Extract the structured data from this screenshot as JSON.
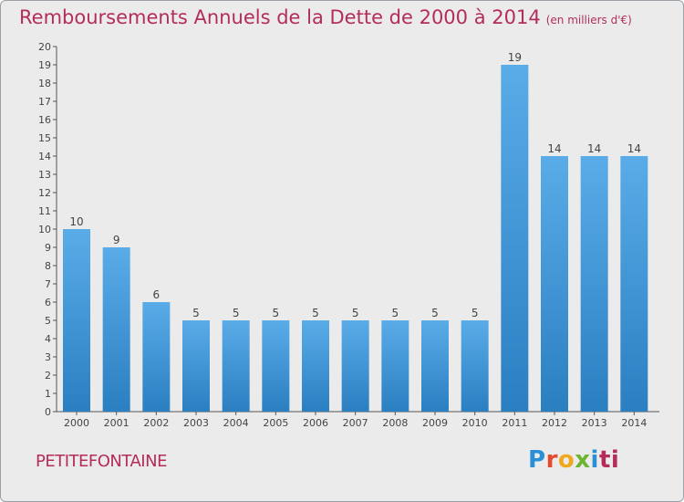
{
  "title": "Remboursements Annuels de la Dette de 2000 à 2014",
  "unit": "(en milliers d'€)",
  "commune": "PETITEFONTAINE",
  "logo": {
    "parts": [
      "P",
      "r",
      "o",
      "x",
      "i",
      "ti"
    ]
  },
  "colors": {
    "title": "#b42d5a",
    "bar_light": "#5aace8",
    "bar_dark": "#2a7fc1",
    "background": "#ebebeb"
  },
  "chart_data": {
    "type": "bar",
    "categories": [
      "2000",
      "2001",
      "2002",
      "2003",
      "2004",
      "2005",
      "2006",
      "2007",
      "2008",
      "2009",
      "2010",
      "2011",
      "2012",
      "2013",
      "2014"
    ],
    "values": [
      10,
      9,
      6,
      5,
      5,
      5,
      5,
      5,
      5,
      5,
      5,
      19,
      14,
      14,
      14
    ],
    "ylim": [
      0,
      20
    ],
    "yticks": [
      "0",
      "1",
      "2",
      "3",
      "4",
      "5",
      "6",
      "7",
      "8",
      "9",
      "10",
      "11",
      "12",
      "13",
      "14",
      "15",
      "16",
      "17",
      "18",
      "19",
      "20"
    ],
    "grid": false,
    "data_labels": true
  }
}
